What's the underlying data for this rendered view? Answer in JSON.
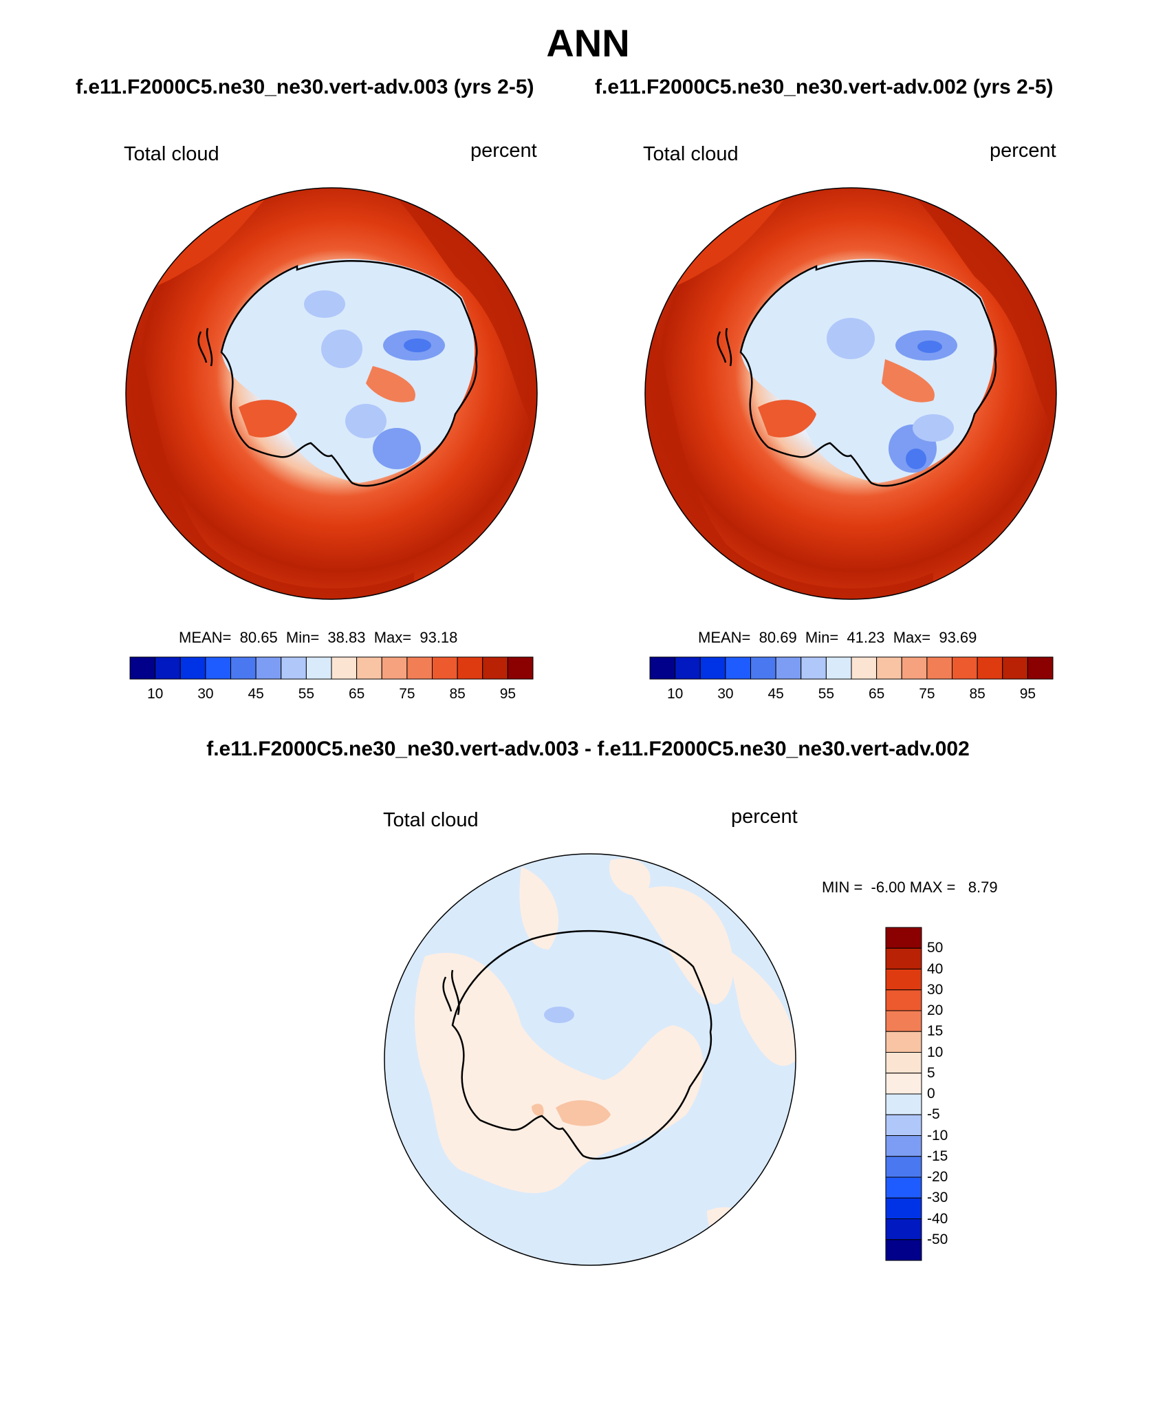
{
  "figure": {
    "main_title": "ANN",
    "case_titles": [
      "f.e11.F2000C5.ne30_ne30.vert-adv.003 (yrs 2-5)",
      "f.e11.F2000C5.ne30_ne30.vert-adv.002 (yrs 2-5)"
    ],
    "diff_title": "f.e11.F2000C5.ne30_ne30.vert-adv.003 - f.e11.F2000C5.ne30_ne30.vert-adv.002"
  },
  "panels": [
    {
      "variable": "Total cloud",
      "units": "percent",
      "stats": "MEAN=  80.65  Min=  38.83  Max=  93.18",
      "mean": 80.65,
      "min": 38.83,
      "max": 93.18
    },
    {
      "variable": "Total cloud",
      "units": "percent",
      "stats": "MEAN=  80.69  Min=  41.23  Max=  93.69",
      "mean": 80.69,
      "min": 41.23,
      "max": 93.69
    },
    {
      "variable": "Total cloud",
      "units": "percent",
      "stats": "MIN =  -6.00 MAX =   8.79",
      "min": -6.0,
      "max": 8.79
    }
  ],
  "colorbars": {
    "absolute": {
      "labels": [
        "10",
        "30",
        "45",
        "55",
        "65",
        "75",
        "85",
        "95"
      ],
      "colors": [
        "#00008b",
        "#0019c0",
        "#0033e6",
        "#1f5cff",
        "#4a78f0",
        "#7c9df3",
        "#b0c7fa",
        "#d9eafb",
        "#fbe4d2",
        "#f8c4a4",
        "#f6a27e",
        "#f27e55",
        "#ec5a2e",
        "#df3b10",
        "#b92204",
        "#8b0000"
      ]
    },
    "difference": {
      "labels": [
        "50",
        "40",
        "30",
        "20",
        "15",
        "10",
        "5",
        "0",
        "-5",
        "-10",
        "-15",
        "-20",
        "-30",
        "-40",
        "-50"
      ],
      "colors": [
        "#8b0000",
        "#b92204",
        "#df3b10",
        "#ec5a2e",
        "#f27e55",
        "#f8c4a4",
        "#fbe4d2",
        "#fdeee3",
        "#d9eafb",
        "#b0c7fa",
        "#7c9df3",
        "#4a78f0",
        "#1f5cff",
        "#0033e6",
        "#0019c0",
        "#00008b"
      ]
    }
  }
}
